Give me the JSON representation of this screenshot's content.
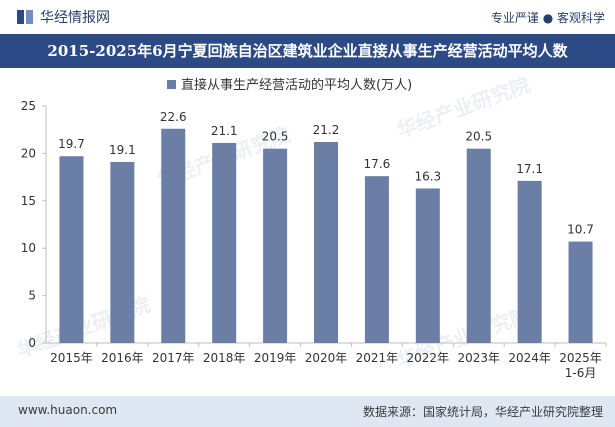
{
  "header": {
    "brand_name": "华经情报网",
    "tagline": "专业严谨 ● 客观科学"
  },
  "chart_data": {
    "type": "bar",
    "title": "2015-2025年6月宁夏回族自治区建筑业企业直接从事生产经营活动平均人数",
    "categories": [
      "2015年",
      "2016年",
      "2017年",
      "2018年",
      "2019年",
      "2020年",
      "2021年",
      "2022年",
      "2023年",
      "2024年",
      "2025年\n1-6月"
    ],
    "series": [
      {
        "name": "直接从事生产经营活动的平均人数(万人)",
        "values": [
          19.7,
          19.1,
          22.6,
          21.1,
          20.5,
          21.2,
          17.6,
          16.3,
          20.5,
          17.1,
          10.7
        ]
      }
    ],
    "ylim": [
      0,
      25
    ],
    "yticks": [
      0,
      5,
      10,
      15,
      20,
      25
    ],
    "grid": false,
    "legend_position": "top-center",
    "bar_color": "#6b7ea6"
  },
  "watermark": "华经产业研究院",
  "footer": {
    "website": "www.huaon.com",
    "source": "数据来源：国家统计局，华经产业研究院整理"
  }
}
